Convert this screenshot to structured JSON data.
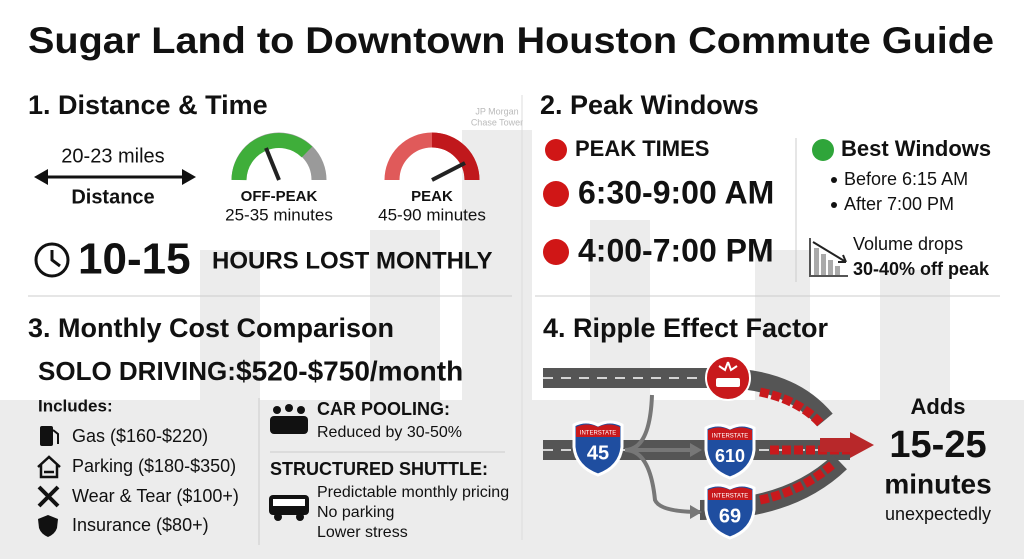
{
  "title": "Sugar Land to Downtown Houston Commute Guide",
  "background_label": [
    "JP Morgan",
    "Chase Tower"
  ],
  "distance_time": {
    "heading": "1. Distance & Time",
    "distance": {
      "value": "20-23 miles",
      "label": "Distance"
    },
    "gauges": [
      {
        "label": "OFF-PEAK",
        "time": "25-35 minutes"
      },
      {
        "label": "PEAK",
        "time": "45-90 minutes"
      }
    ],
    "hours_lost": {
      "value": "10-15",
      "label": "HOURS LOST MONTHLY"
    }
  },
  "peak_windows": {
    "heading": "2. Peak Windows",
    "peak_label": "PEAK TIMES",
    "peak_times": [
      "6:30-9:00 AM",
      "4:00-7:00 PM"
    ],
    "best_label": "Best Windows",
    "best_times": [
      "Before 6:15 AM",
      "After 7:00 PM"
    ],
    "volume": [
      "Volume drops",
      "30-40% off peak"
    ]
  },
  "cost": {
    "heading": "3. Monthly Cost Comparison",
    "solo_label": "SOLO DRIVING:",
    "solo_value": "$520-$750/month",
    "includes_label": "Includes:",
    "includes": [
      "Gas ($160-$220)",
      "Parking ($180-$350)",
      "Wear & Tear ($100+)",
      "Insurance ($80+)"
    ],
    "carpool": {
      "label": "CAR POOLING:",
      "text": "Reduced by 30-50%"
    },
    "shuttle": {
      "label": "STRUCTURED SHUTTLE:",
      "lines": [
        "Predictable monthly pricing",
        "No parking",
        "Lower stress"
      ]
    }
  },
  "ripple": {
    "heading": "4. Ripple Effect Factor",
    "shields": [
      {
        "top": "INTERSTATE",
        "number": "45"
      },
      {
        "top": "INTERSTATE",
        "number": "610"
      },
      {
        "top": "INTERSTATE",
        "number": "69"
      }
    ],
    "adds": [
      "Adds",
      "15-25",
      "minutes",
      "unexpectedly"
    ]
  }
}
